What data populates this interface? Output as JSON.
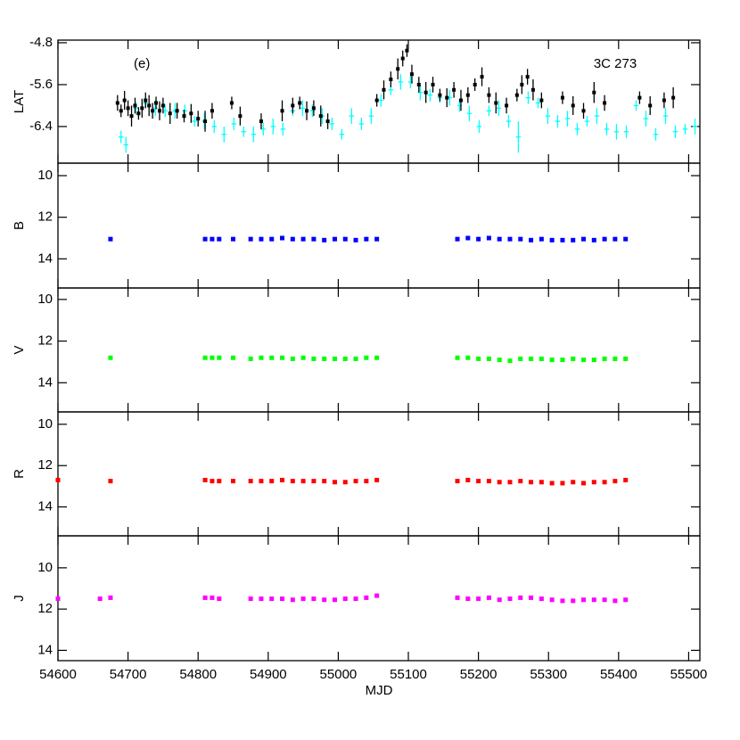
{
  "chart_data": [
    {
      "type": "scatter",
      "ylabel": "LAT",
      "annotations": [
        "(e)",
        "3C 273"
      ],
      "xlim": [
        54600,
        55516
      ],
      "xticks": [
        54600,
        54700,
        54800,
        54900,
        55000,
        55100,
        55200,
        55300,
        55400,
        55500
      ],
      "ylim": [
        -7.1,
        -4.75
      ],
      "yticks": [
        -6.4,
        -5.6,
        -4.8
      ],
      "series": [
        {
          "color": "#00ffff",
          "x": [
            54690,
            54697,
            54711,
            54725,
            54739,
            54753,
            54767,
            54781,
            54795,
            54809,
            54823,
            54837,
            54851,
            54865,
            54879,
            54893,
            54907,
            54921,
            54935,
            54949,
            54963,
            54977,
            54991,
            55005,
            55019,
            55033,
            55047,
            55061,
            55075,
            55089,
            55103,
            55117,
            55131,
            55145,
            55159,
            55173,
            55187,
            55201,
            55215,
            55229,
            55243,
            55257,
            55271,
            55285,
            55299,
            55313,
            55327,
            55341,
            55355,
            55369,
            55383,
            55397,
            55411,
            55425,
            55439,
            55453,
            55467,
            55481,
            55495,
            55509
          ],
          "values": [
            -6.6,
            -6.75,
            -6.05,
            -5.95,
            -6.05,
            -6.1,
            -6.1,
            -6.1,
            -6.3,
            -6.3,
            -6.4,
            -6.55,
            -6.35,
            -6.5,
            -6.55,
            -6.45,
            -6.4,
            -6.45,
            -6.1,
            -6.05,
            -6.1,
            -6.2,
            -6.35,
            -6.55,
            -6.2,
            -6.35,
            -6.2,
            -5.9,
            -5.7,
            -5.55,
            -5.55,
            -5.75,
            -5.8,
            -5.85,
            -5.85,
            -6.0,
            -6.15,
            -6.4,
            -6.1,
            -6.05,
            -6.3,
            -6.6,
            -5.85,
            -5.95,
            -6.2,
            -6.3,
            -6.25,
            -6.45,
            -6.3,
            -6.2,
            -6.45,
            -6.5,
            -6.5,
            -6.0,
            -6.25,
            -6.55,
            -6.2,
            -6.5,
            -6.45,
            -6.4
          ],
          "errors": [
            0.12,
            0.15,
            0.12,
            0.1,
            0.15,
            0.12,
            0.15,
            0.12,
            0.1,
            0.15,
            0.12,
            0.15,
            0.12,
            0.1,
            0.15,
            0.12,
            0.15,
            0.12,
            0.1,
            0.15,
            0.12,
            0.15,
            0.12,
            0.1,
            0.15,
            0.12,
            0.15,
            0.12,
            0.1,
            0.15,
            0.12,
            0.15,
            0.12,
            0.1,
            0.15,
            0.12,
            0.15,
            0.12,
            0.1,
            0.15,
            0.12,
            0.3,
            0.12,
            0.1,
            0.15,
            0.12,
            0.15,
            0.12,
            0.1,
            0.15,
            0.12,
            0.15,
            0.12,
            0.1,
            0.15,
            0.12,
            0.15,
            0.12,
            0.1,
            0.15
          ],
          "x_errors": [
            3.5,
            3.5,
            3.5,
            3.5,
            3.5,
            3.5,
            3.5,
            3.5,
            3.5,
            3.5,
            3.5,
            3.5,
            3.5,
            3.5,
            3.5,
            3.5,
            3.5,
            3.5,
            3.5,
            3.5,
            3.5,
            3.5,
            3.5,
            3.5,
            3.5,
            3.5,
            3.5,
            3.5,
            3.5,
            3.5,
            3.5,
            3.5,
            3.5,
            3.5,
            3.5,
            3.5,
            3.5,
            3.5,
            3.5,
            3.5,
            3.5,
            3.5,
            3.5,
            3.5,
            3.5,
            3.5,
            3.5,
            3.5,
            3.5,
            3.5,
            3.5,
            3.5,
            3.5,
            3.5,
            3.5,
            3.5,
            3.5,
            3.5,
            3.5,
            3.5
          ]
        },
        {
          "color": "#000000",
          "x": [
            54685,
            54690,
            54695,
            54700,
            54705,
            54710,
            54715,
            54720,
            54725,
            54730,
            54735,
            54740,
            54745,
            54750,
            54760,
            54770,
            54780,
            54790,
            54800,
            54810,
            54820,
            54848,
            54860,
            54890,
            54920,
            54935,
            54945,
            54955,
            54965,
            54975,
            54985,
            55055,
            55065,
            55075,
            55085,
            55092,
            55098,
            55105,
            55115,
            55125,
            55135,
            55145,
            55155,
            55165,
            55175,
            55185,
            55195,
            55205,
            55215,
            55225,
            55240,
            55255,
            55262,
            55270,
            55278,
            55290,
            55320,
            55335,
            55350,
            55365,
            55380,
            55430,
            55445,
            55465,
            55478
          ],
          "values": [
            -5.95,
            -6.1,
            -5.9,
            -6.05,
            -6.2,
            -6.0,
            -6.15,
            -6.05,
            -5.9,
            -6.0,
            -6.1,
            -5.95,
            -6.1,
            -6.0,
            -6.15,
            -6.1,
            -6.2,
            -6.15,
            -6.25,
            -6.3,
            -6.1,
            -5.95,
            -6.2,
            -6.3,
            -6.1,
            -6.0,
            -5.95,
            -6.1,
            -6.05,
            -6.2,
            -6.3,
            -5.9,
            -5.7,
            -5.5,
            -5.3,
            -5.1,
            -4.95,
            -5.4,
            -5.6,
            -5.75,
            -5.6,
            -5.8,
            -5.85,
            -5.7,
            -5.9,
            -5.8,
            -5.6,
            -5.45,
            -5.8,
            -5.95,
            -6.0,
            -5.8,
            -5.6,
            -5.45,
            -5.7,
            -5.9,
            -5.85,
            -6.0,
            -6.1,
            -5.75,
            -5.95,
            -5.85,
            -6.0,
            -5.9,
            -5.85
          ],
          "errors": [
            0.15,
            0.12,
            0.18,
            0.15,
            0.2,
            0.15,
            0.12,
            0.18,
            0.15,
            0.2,
            0.15,
            0.12,
            0.18,
            0.15,
            0.2,
            0.15,
            0.12,
            0.18,
            0.15,
            0.2,
            0.15,
            0.12,
            0.18,
            0.15,
            0.2,
            0.15,
            0.12,
            0.18,
            0.15,
            0.2,
            0.15,
            0.12,
            0.18,
            0.15,
            0.2,
            0.15,
            0.12,
            0.18,
            0.15,
            0.2,
            0.15,
            0.12,
            0.18,
            0.15,
            0.2,
            0.15,
            0.12,
            0.18,
            0.15,
            0.2,
            0.15,
            0.12,
            0.18,
            0.15,
            0.2,
            0.15,
            0.12,
            0.18,
            0.15,
            0.2,
            0.15,
            0.12,
            0.18,
            0.15,
            0.2
          ]
        }
      ]
    },
    {
      "type": "scatter",
      "ylabel": "B",
      "xlim": [
        54600,
        55516
      ],
      "xticks": [
        54600,
        54700,
        54800,
        54900,
        55000,
        55100,
        55200,
        55300,
        55400,
        55500
      ],
      "ylim": [
        15.4,
        9.4
      ],
      "yticks": [
        10,
        12,
        14
      ],
      "series": [
        {
          "color": "#0000ff",
          "x": [
            54675,
            54810,
            54820,
            54830,
            54850,
            54875,
            54890,
            54905,
            54920,
            54935,
            54950,
            54965,
            54980,
            54995,
            55010,
            55025,
            55040,
            55055,
            55170,
            55185,
            55200,
            55215,
            55230,
            55245,
            55260,
            55275,
            55290,
            55305,
            55320,
            55335,
            55350,
            55365,
            55380,
            55395,
            55410
          ],
          "values": [
            13.05,
            13.05,
            13.05,
            13.05,
            13.05,
            13.05,
            13.05,
            13.05,
            13.0,
            13.05,
            13.05,
            13.05,
            13.1,
            13.05,
            13.05,
            13.1,
            13.05,
            13.05,
            13.05,
            13.0,
            13.05,
            13.0,
            13.05,
            13.05,
            13.05,
            13.1,
            13.05,
            13.1,
            13.1,
            13.1,
            13.05,
            13.1,
            13.05,
            13.05,
            13.05
          ]
        }
      ]
    },
    {
      "type": "scatter",
      "ylabel": "V",
      "xlim": [
        54600,
        55516
      ],
      "xticks": [
        54600,
        54700,
        54800,
        54900,
        55000,
        55100,
        55200,
        55300,
        55400,
        55500
      ],
      "ylim": [
        15.4,
        9.45
      ],
      "yticks": [
        10,
        12,
        14
      ],
      "series": [
        {
          "color": "#00ff00",
          "x": [
            54675,
            54810,
            54820,
            54830,
            54850,
            54875,
            54890,
            54905,
            54920,
            54935,
            54950,
            54965,
            54980,
            54995,
            55010,
            55025,
            55040,
            55055,
            55170,
            55185,
            55200,
            55215,
            55230,
            55245,
            55260,
            55275,
            55290,
            55305,
            55320,
            55335,
            55350,
            55365,
            55380,
            55395,
            55410
          ],
          "values": [
            12.8,
            12.8,
            12.8,
            12.8,
            12.8,
            12.85,
            12.8,
            12.8,
            12.8,
            12.85,
            12.8,
            12.85,
            12.85,
            12.85,
            12.85,
            12.85,
            12.8,
            12.8,
            12.8,
            12.8,
            12.85,
            12.85,
            12.9,
            12.95,
            12.85,
            12.85,
            12.85,
            12.9,
            12.9,
            12.85,
            12.9,
            12.9,
            12.85,
            12.85,
            12.85
          ]
        }
      ]
    },
    {
      "type": "scatter",
      "ylabel": "R",
      "xlim": [
        54600,
        55516
      ],
      "xticks": [
        54600,
        54700,
        54800,
        54900,
        55000,
        55100,
        55200,
        55300,
        55400,
        55500
      ],
      "ylim": [
        15.4,
        9.4
      ],
      "yticks": [
        10,
        12,
        14
      ],
      "series": [
        {
          "color": "#ff0000",
          "x": [
            54600,
            54675,
            54810,
            54820,
            54830,
            54850,
            54875,
            54890,
            54905,
            54920,
            54935,
            54950,
            54965,
            54980,
            54995,
            55010,
            55025,
            55040,
            55055,
            55170,
            55185,
            55200,
            55215,
            55230,
            55245,
            55260,
            55275,
            55290,
            55305,
            55320,
            55335,
            55350,
            55365,
            55380,
            55395,
            55410
          ],
          "values": [
            12.7,
            12.75,
            12.7,
            12.75,
            12.75,
            12.75,
            12.75,
            12.75,
            12.75,
            12.7,
            12.75,
            12.75,
            12.75,
            12.75,
            12.8,
            12.8,
            12.75,
            12.75,
            12.7,
            12.75,
            12.7,
            12.75,
            12.75,
            12.8,
            12.8,
            12.75,
            12.8,
            12.8,
            12.85,
            12.85,
            12.8,
            12.85,
            12.8,
            12.8,
            12.75,
            12.7
          ]
        }
      ]
    },
    {
      "type": "scatter",
      "ylabel": "J",
      "xlabel": "MJD",
      "xtick_labels": true,
      "xlim": [
        54600,
        55516
      ],
      "xticks": [
        54600,
        54700,
        54800,
        54900,
        55000,
        55100,
        55200,
        55300,
        55400,
        55500
      ],
      "ylim": [
        14.5,
        8.45
      ],
      "yticks": [
        10,
        12,
        14
      ],
      "series": [
        {
          "color": "#ff00ff",
          "x": [
            54600,
            54660,
            54675,
            54810,
            54820,
            54830,
            54875,
            54890,
            54905,
            54920,
            54935,
            54950,
            54965,
            54980,
            54995,
            55010,
            55025,
            55040,
            55055,
            55170,
            55185,
            55200,
            55215,
            55230,
            55245,
            55260,
            55275,
            55290,
            55305,
            55320,
            55335,
            55350,
            55365,
            55380,
            55395,
            55410
          ],
          "values": [
            11.5,
            11.5,
            11.45,
            11.45,
            11.45,
            11.5,
            11.5,
            11.5,
            11.5,
            11.5,
            11.55,
            11.5,
            11.5,
            11.55,
            11.55,
            11.5,
            11.5,
            11.45,
            11.35,
            11.45,
            11.5,
            11.5,
            11.45,
            11.55,
            11.5,
            11.45,
            11.45,
            11.5,
            11.55,
            11.6,
            11.6,
            11.55,
            11.55,
            11.55,
            11.6,
            11.55
          ]
        }
      ]
    }
  ]
}
